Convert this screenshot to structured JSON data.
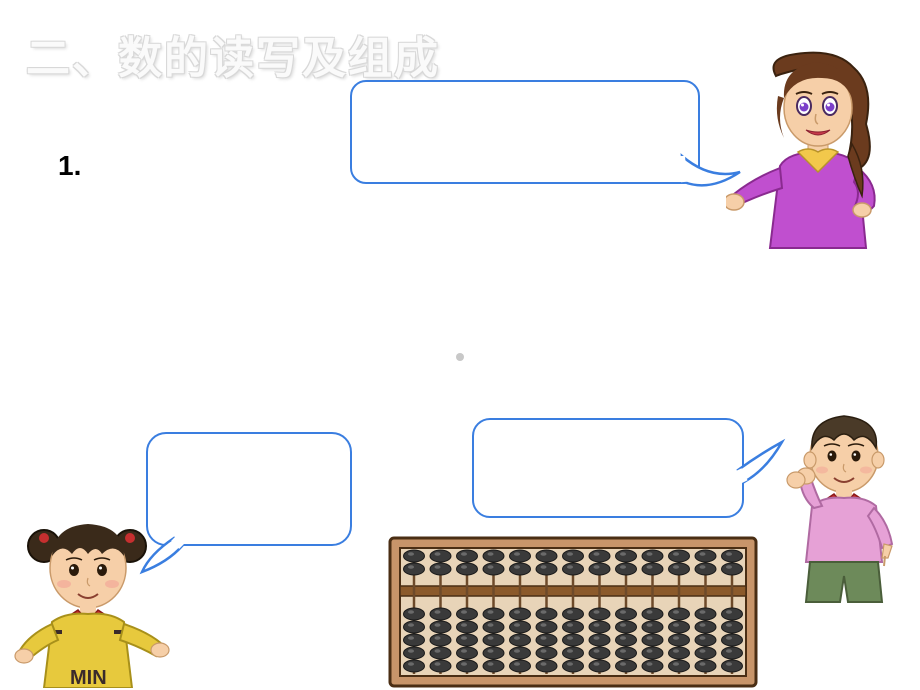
{
  "title": "二、数的读写及组成",
  "item_number": "1.",
  "speech_bubbles": {
    "top": "",
    "left": "",
    "right": ""
  },
  "bubble_border_color": "#3a7ee0",
  "characters": {
    "teacher": {
      "hair_color": "#6b3b1e",
      "skin_color": "#f6cfa8",
      "shirt_color": "#c04fcf",
      "collar_color": "#f2c84b",
      "eye_color": "#7b3fca",
      "lip_color": "#c73a4a"
    },
    "girl": {
      "hair_color": "#3a2a1a",
      "skin_color": "#f6cfa8",
      "shirt_color": "#e7c93d",
      "scarf_color": "#c62f2f",
      "text_color": "#3a2b2b",
      "shirt_text": "MIN"
    },
    "boy": {
      "hair_color": "#4a3a28",
      "skin_color": "#f6cfa8",
      "shirt_color": "#e6a1d6",
      "scarf_color": "#c62f2f",
      "pants_color": "#6d8a5a"
    }
  },
  "abacus": {
    "frame_color": "#8b5a2b",
    "frame_light": "#c8956a",
    "rod_color": "#6d4a2a",
    "bead_color": "#3a3a3a",
    "bead_highlight": "#6a6a6a",
    "columns": 13,
    "upper_beads": 2,
    "lower_beads": 5
  },
  "background_color": "#ffffff"
}
